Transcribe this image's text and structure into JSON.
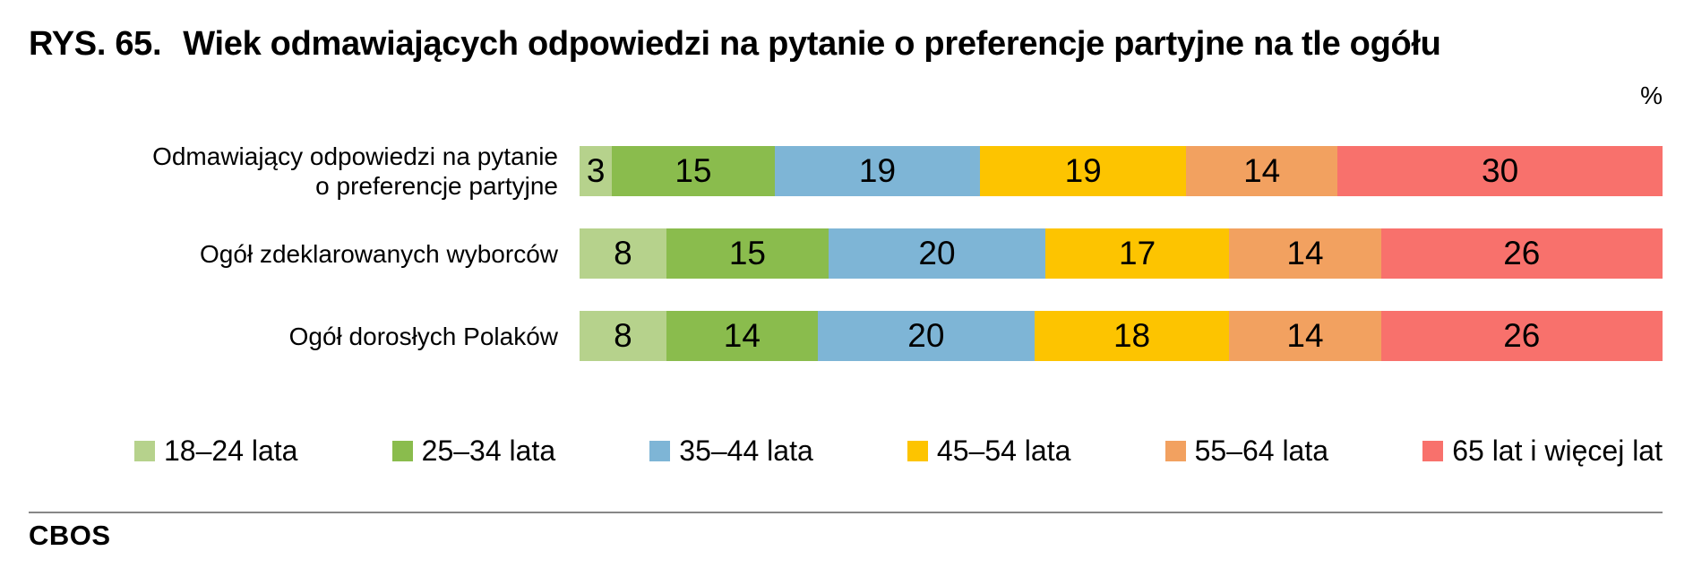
{
  "header": {
    "figure_label": "RYS. 65.",
    "title": "Wiek odmawiających odpowiedzi na pytanie o preferencje partyjne na tle ogółu"
  },
  "footer": {
    "source": "CBOS"
  },
  "chart_data": {
    "type": "bar",
    "stacked": true,
    "orientation": "horizontal",
    "title": "RYS. 65. Wiek odmawiających odpowiedzi na pytanie o preferencje partyjne na tle ogółu",
    "unit_label": "%",
    "xlim": [
      0,
      100
    ],
    "grid": false,
    "legend_position": "bottom",
    "categories": [
      "Odmawiający odpowiedzi na pytanie\no preferencje partyjne",
      "Ogół zdeklarowanych wyborców",
      "Ogół dorosłych Polaków"
    ],
    "series": [
      {
        "name": "18–24 lata",
        "color": "#b6d28c",
        "values": [
          3,
          8,
          8
        ]
      },
      {
        "name": "25–34 lata",
        "color": "#8abc4d",
        "values": [
          15,
          15,
          14
        ]
      },
      {
        "name": "35–44 lata",
        "color": "#7eb5d6",
        "values": [
          19,
          20,
          20
        ]
      },
      {
        "name": "45–54 lata",
        "color": "#fdc400",
        "values": [
          19,
          17,
          18
        ]
      },
      {
        "name": "55–64 lata",
        "color": "#f2a160",
        "values": [
          14,
          14,
          14
        ]
      },
      {
        "name": "65 lat i więcej lat",
        "color": "#f8716c",
        "values": [
          30,
          26,
          26
        ]
      }
    ]
  }
}
